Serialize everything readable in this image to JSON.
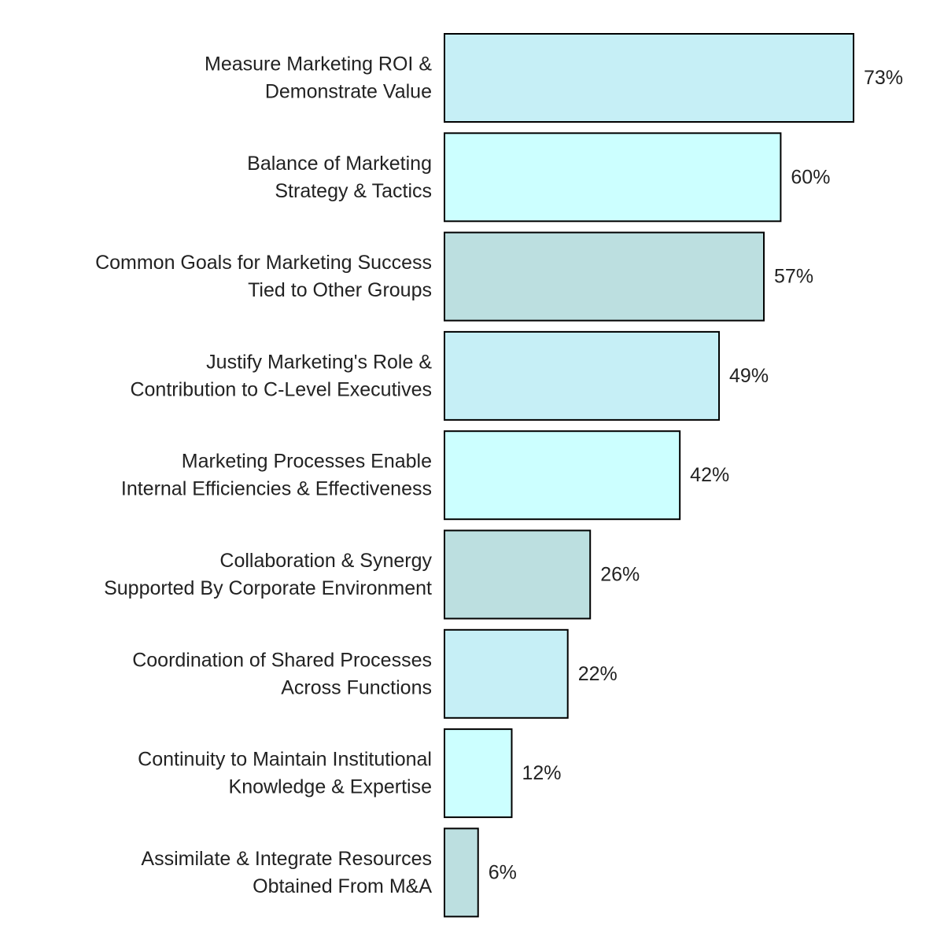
{
  "chart_data": {
    "type": "bar",
    "orientation": "horizontal",
    "title": "",
    "xlabel": "",
    "ylabel": "",
    "xlim": [
      0,
      73
    ],
    "grid": false,
    "legend": "none",
    "categories": [
      [
        "Measure Marketing ROI &",
        "Demonstrate Value"
      ],
      [
        "Balance of Marketing",
        "Strategy & Tactics"
      ],
      [
        "Common Goals for Marketing Success",
        "Tied to Other Groups"
      ],
      [
        "Justify Marketing's Role &",
        "Contribution to C-Level Executives"
      ],
      [
        "Marketing Processes Enable",
        "Internal Efficiencies & Effectiveness"
      ],
      [
        "Collaboration & Synergy",
        "Supported By Corporate Environment"
      ],
      [
        "Coordination of Shared Processes",
        "Across Functions"
      ],
      [
        "Continuity to Maintain Institutional",
        "Knowledge & Expertise"
      ],
      [
        "Assimilate & Integrate Resources",
        "Obtained From M&A"
      ]
    ],
    "values": [
      73,
      60,
      57,
      49,
      42,
      26,
      22,
      12,
      6
    ],
    "value_labels": [
      "73%",
      "60%",
      "57%",
      "49%",
      "42%",
      "26%",
      "22%",
      "12%",
      "6%"
    ],
    "bar_colors": [
      "#c6eff6",
      "#ccffff",
      "#bcdfe0",
      "#c6eff6",
      "#ccffff",
      "#bcdfe0",
      "#c6eff6",
      "#ccffff",
      "#bcdfe0"
    ],
    "bar_outline": "#000000"
  }
}
